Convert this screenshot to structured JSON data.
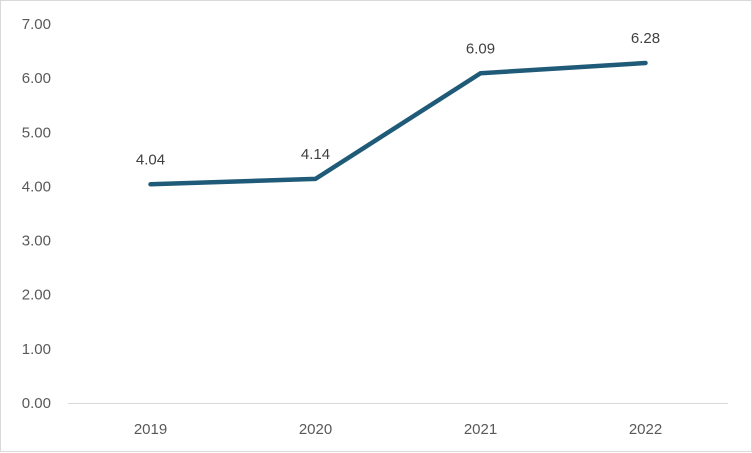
{
  "chart_data": {
    "type": "line",
    "title": "",
    "xlabel": "",
    "ylabel": "",
    "categories": [
      "2019",
      "2020",
      "2021",
      "2022"
    ],
    "series": [
      {
        "values": [
          4.04,
          4.14,
          6.09,
          6.28
        ],
        "color": "#1f5b78"
      }
    ],
    "data_labels": [
      "4.04",
      "4.14",
      "6.09",
      "6.28"
    ],
    "ylim": [
      0,
      7
    ],
    "yticks": [
      "0.00",
      "1.00",
      "2.00",
      "3.00",
      "4.00",
      "5.00",
      "6.00",
      "7.00"
    ],
    "grid": false,
    "legend": "none"
  }
}
